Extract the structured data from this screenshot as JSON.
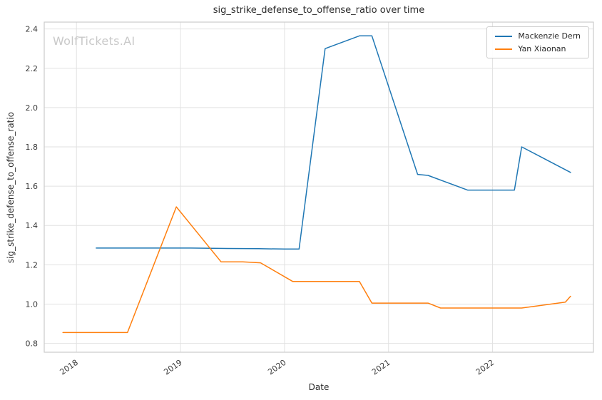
{
  "chart_data": {
    "type": "line",
    "title": "sig_strike_defense_to_offense_ratio over time",
    "xlabel": "Date",
    "ylabel": "sig_strike_defense_to_offense_ratio",
    "watermark": "WolfTickets.AI",
    "xlim": [
      2017.69,
      2022.97
    ],
    "ylim": [
      0.755,
      2.435
    ],
    "xticks": [
      2018,
      2019,
      2020,
      2021,
      2022
    ],
    "yticks": [
      0.8,
      1.0,
      1.2,
      1.4,
      1.6,
      1.8,
      2.0,
      2.2,
      2.4
    ],
    "grid": true,
    "legend_position": "upper-right",
    "series": [
      {
        "name": "Mackenzie Dern",
        "color": "#1f77b4",
        "points": [
          [
            2018.19,
            1.285
          ],
          [
            2018.75,
            1.285
          ],
          [
            2019.1,
            1.285
          ],
          [
            2019.45,
            1.283
          ],
          [
            2019.75,
            1.282
          ],
          [
            2020.0,
            1.28
          ],
          [
            2020.14,
            1.28
          ],
          [
            2020.39,
            2.3
          ],
          [
            2020.72,
            2.365
          ],
          [
            2020.84,
            2.365
          ],
          [
            2021.28,
            1.66
          ],
          [
            2021.38,
            1.655
          ],
          [
            2021.76,
            1.58
          ],
          [
            2022.21,
            1.58
          ],
          [
            2022.28,
            1.8
          ],
          [
            2022.75,
            1.67
          ]
        ]
      },
      {
        "name": "Yan Xiaonan",
        "color": "#ff7f0e",
        "points": [
          [
            2017.87,
            0.855
          ],
          [
            2018.2,
            0.855
          ],
          [
            2018.49,
            0.855
          ],
          [
            2018.96,
            1.495
          ],
          [
            2019.39,
            1.215
          ],
          [
            2019.6,
            1.215
          ],
          [
            2019.77,
            1.21
          ],
          [
            2020.08,
            1.115
          ],
          [
            2020.45,
            1.115
          ],
          [
            2020.72,
            1.115
          ],
          [
            2020.84,
            1.005
          ],
          [
            2021.2,
            1.005
          ],
          [
            2021.38,
            1.005
          ],
          [
            2021.5,
            0.98
          ],
          [
            2021.8,
            0.98
          ],
          [
            2022.28,
            0.98
          ],
          [
            2022.7,
            1.01
          ],
          [
            2022.75,
            1.04
          ]
        ]
      }
    ]
  }
}
